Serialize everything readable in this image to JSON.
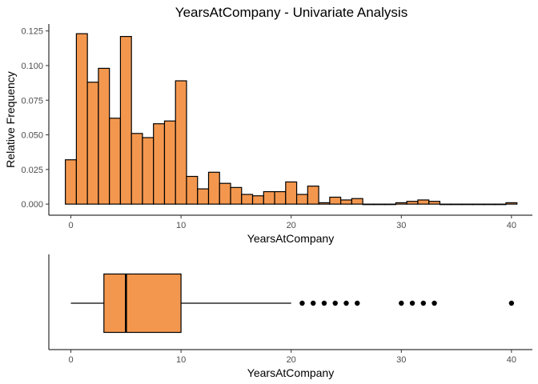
{
  "chart_data": [
    {
      "type": "bar",
      "title": "YearsAtCompany - Univariate Analysis",
      "xlabel": "YearsAtCompany",
      "ylabel": "Relative Frequency",
      "bin_width": 1,
      "bin_centers": [
        0,
        1,
        2,
        3,
        4,
        5,
        6,
        7,
        8,
        9,
        10,
        11,
        12,
        13,
        14,
        15,
        16,
        17,
        18,
        19,
        20,
        21,
        22,
        23,
        24,
        25,
        26,
        27,
        28,
        29,
        30,
        31,
        32,
        33,
        34,
        35,
        36,
        37,
        38,
        39,
        40
      ],
      "values": [
        0.032,
        0.123,
        0.088,
        0.098,
        0.062,
        0.121,
        0.051,
        0.048,
        0.058,
        0.06,
        0.089,
        0.02,
        0.011,
        0.023,
        0.015,
        0.012,
        0.007,
        0.006,
        0.009,
        0.009,
        0.016,
        0.007,
        0.013,
        0.001,
        0.005,
        0.003,
        0.004,
        0,
        0,
        0,
        0.001,
        0.002,
        0.003,
        0.002,
        0,
        0,
        0,
        0,
        0,
        0,
        0.001
      ],
      "xlim": [
        -2,
        41.9
      ],
      "ylim": [
        -0.008,
        0.13
      ],
      "xticks": [
        0,
        10,
        20,
        30,
        40
      ],
      "yticks": [
        0.0,
        0.025,
        0.05,
        0.075,
        0.1,
        0.125
      ],
      "ytick_labels": [
        "0.000",
        "0.025",
        "0.050",
        "0.075",
        "0.100",
        "0.125"
      ],
      "fill_color": "#F4974E",
      "edge_color": "#000000",
      "grid": false
    },
    {
      "type": "boxplot",
      "xlabel": "YearsAtCompany",
      "min_whisker": 0,
      "q1": 3,
      "median": 5,
      "q3": 10,
      "max_whisker": 20,
      "outliers": [
        21,
        22,
        23,
        24,
        25,
        26,
        30,
        31,
        32,
        33,
        40
      ],
      "xlim": [
        -2,
        41.9
      ],
      "xticks": [
        0,
        10,
        20,
        30,
        40
      ],
      "fill_color": "#F4974E",
      "edge_color": "#000000",
      "grid": false
    }
  ]
}
